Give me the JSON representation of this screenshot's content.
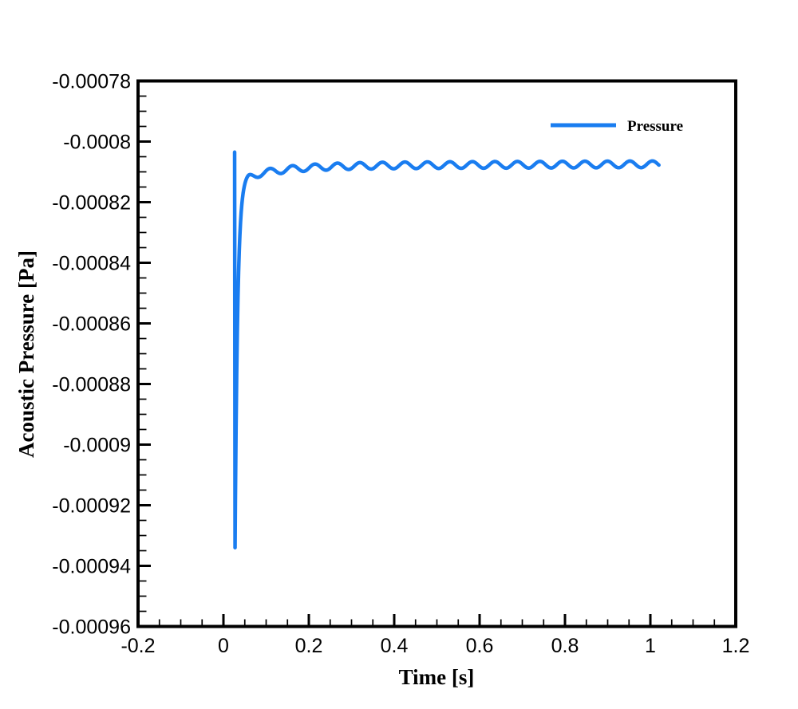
{
  "page": {
    "background": "#ffffff"
  },
  "chart_data": {
    "type": "line",
    "title": "",
    "xlabel": "Time [s]",
    "ylabel": "Acoustic Pressure [Pa]",
    "xlim": [
      -0.2,
      1.2
    ],
    "ylim": [
      -0.00096,
      -0.00078
    ],
    "grid": false,
    "frame_color": "#000000",
    "x_ticks": {
      "values": [
        -0.2,
        0,
        0.2,
        0.4,
        0.6,
        0.8,
        1,
        1.2
      ],
      "labels": [
        "-0.2",
        "0",
        "0.2",
        "0.4",
        "0.6",
        "0.8",
        "1",
        "1.2"
      ],
      "minor_divisions": 4
    },
    "y_ticks": {
      "values": [
        -0.00078,
        -0.0008,
        -0.00082,
        -0.00084,
        -0.00086,
        -0.00088,
        -0.0009,
        -0.00092,
        -0.00094,
        -0.00096
      ],
      "labels": [
        "-0.00078",
        "-0.0008",
        "-0.00082",
        "-0.00084",
        "-0.00086",
        "-0.00088",
        "-0.0009",
        "-0.00092",
        "-0.00094",
        "-0.00096"
      ],
      "minor_divisions": 4
    },
    "legend": {
      "position": "top-right-inside",
      "entries": [
        {
          "label": "Pressure",
          "color": "#1a7df0"
        }
      ]
    },
    "series": [
      {
        "name": "Pressure",
        "color": "#1a7df0",
        "line_width": 4.5,
        "t_start": 0.0262,
        "t_end": 1.02,
        "spike": {
          "t_top": 0.0262,
          "top_value": -0.0008035,
          "t_bottom": 0.0272,
          "bottom_value": -0.000934
        },
        "recovery": {
          "fast_coeff": -0.000121,
          "fast_tau": 0.006,
          "slow_coeff": -5e-06,
          "slow_tau": 0.09
        },
        "steady_state": {
          "base": -0.000808,
          "drift_per_s": 5e-07
        },
        "ripple": {
          "amplitude": 1.1e-06,
          "period": 0.0527,
          "phase_t": 0.043,
          "ramp_start": 0.032,
          "ramp_end": 0.06
        },
        "sample_dt": 0.0015,
        "keypoints_readout": [
          [
            0.026,
            -0.000804
          ],
          [
            0.027,
            -0.000934
          ],
          [
            0.04,
            -0.000827
          ],
          [
            0.06,
            -0.000813
          ],
          [
            0.1,
            -0.000811
          ],
          [
            0.2,
            -0.000809
          ],
          [
            0.4,
            -0.000808
          ],
          [
            0.6,
            -0.0008077
          ],
          [
            0.8,
            -0.0008075
          ],
          [
            1.02,
            -0.0008073
          ]
        ]
      }
    ]
  }
}
